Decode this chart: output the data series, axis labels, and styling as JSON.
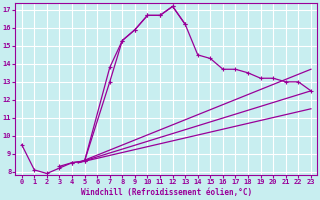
{
  "xlabel": "Windchill (Refroidissement éolien,°C)",
  "background_color": "#c8eef0",
  "line_color": "#990099",
  "grid_color": "#aadddd",
  "ylim": [
    7.8,
    17.4
  ],
  "xlim": [
    -0.5,
    23.5
  ],
  "yticks": [
    8,
    9,
    10,
    11,
    12,
    13,
    14,
    15,
    16,
    17
  ],
  "xticks": [
    0,
    1,
    2,
    3,
    4,
    5,
    6,
    7,
    8,
    9,
    10,
    11,
    12,
    13,
    14,
    15,
    16,
    17,
    18,
    19,
    20,
    21,
    22,
    23
  ],
  "curve_main_x": [
    0,
    1,
    2,
    3,
    4,
    5,
    7,
    8,
    9,
    10,
    11,
    12,
    13,
    14,
    15,
    16,
    17,
    18,
    19,
    20,
    21,
    22,
    23
  ],
  "curve_main_y": [
    9.5,
    8.1,
    7.9,
    8.2,
    8.5,
    8.6,
    13.8,
    15.3,
    15.9,
    16.7,
    16.7,
    17.2,
    16.2,
    14.5,
    14.3,
    13.7,
    13.7,
    13.5,
    13.2,
    13.2,
    13.0,
    13.0,
    12.5
  ],
  "curve2_x": [
    3,
    4,
    5,
    7,
    8,
    9,
    10,
    11,
    12,
    13
  ],
  "curve2_y": [
    8.3,
    8.5,
    8.6,
    13.0,
    15.3,
    15.9,
    16.7,
    16.7,
    17.2,
    16.2
  ],
  "fan_origin_x": 4.5,
  "fan_origin_y": 8.5,
  "fan_lines": [
    {
      "x2": 23,
      "y2": 13.7
    },
    {
      "x2": 23,
      "y2": 12.5
    },
    {
      "x2": 23,
      "y2": 11.5
    }
  ]
}
